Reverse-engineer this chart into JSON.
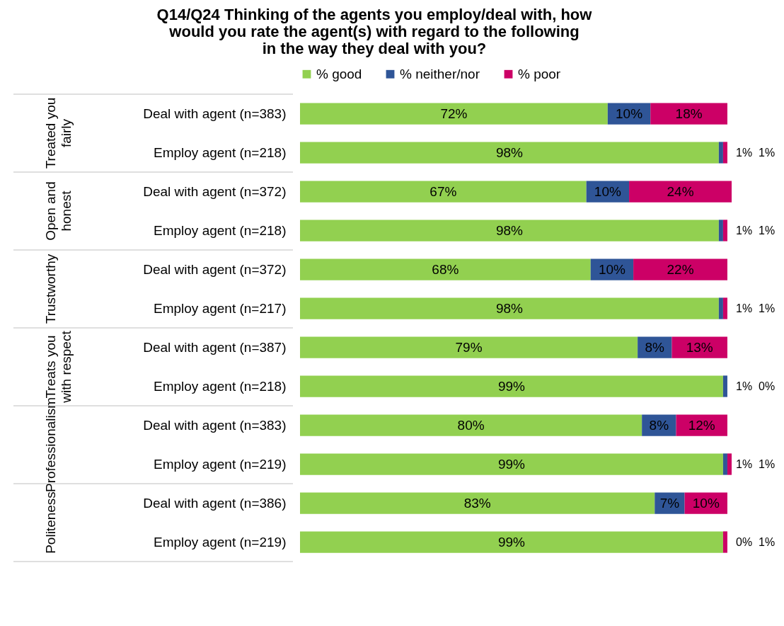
{
  "chart_data": {
    "type": "bar",
    "orientation": "horizontal",
    "stacked": true,
    "title": "Q14/Q24 Thinking of the agents you employ/deal with, how would you rate the agent(s) with regard to the following in the way they deal with you?",
    "categories": [
      "Deal with agent (n=383)",
      "Employ agent (n=218)",
      "Deal with agent (n=372)",
      "Employ agent (n=218)",
      "Deal with agent (n=372)",
      "Employ agent (n=217)",
      "Deal with agent (n=387)",
      "Employ agent (n=218)",
      "Deal with agent (n=383)",
      "Employ agent (n=219)",
      "Deal with agent (n=386)",
      "Employ agent (n=219)"
    ],
    "annotations": [
      "Treated you fairly",
      "Open and honest",
      "Trustworthy",
      "Treats you with respect",
      "Professionalism",
      "Politeness"
    ],
    "series": [
      {
        "name": "% good",
        "color": "#92d050",
        "values": [
          72,
          98,
          67,
          98,
          68,
          98,
          79,
          99,
          80,
          99,
          83,
          99
        ],
        "value_labels": [
          "72%",
          "98%",
          "67%",
          "98%",
          "68%",
          "98%",
          "79%",
          "99%",
          "80%",
          "99%",
          "83%",
          "99%"
        ]
      },
      {
        "name": "% neither/nor",
        "color": "#2f5597",
        "values": [
          10,
          1,
          10,
          1,
          10,
          1,
          8,
          1,
          8,
          1,
          7,
          0
        ],
        "value_labels": [
          "10%",
          "1%",
          "10%",
          "1%",
          "10%",
          "1%",
          "8%",
          "1%",
          "8%",
          "1%",
          "7%",
          "0%"
        ]
      },
      {
        "name": "% poor",
        "color": "#cc0066",
        "values": [
          18,
          1,
          24,
          1,
          22,
          1,
          13,
          0,
          12,
          1,
          10,
          1
        ],
        "value_labels": [
          "18%",
          "1%",
          "24%",
          "1%",
          "22%",
          "1%",
          "13%",
          "0%",
          "12%",
          "1%",
          "10%",
          "1%"
        ]
      }
    ],
    "legend": "top",
    "grid": false
  }
}
